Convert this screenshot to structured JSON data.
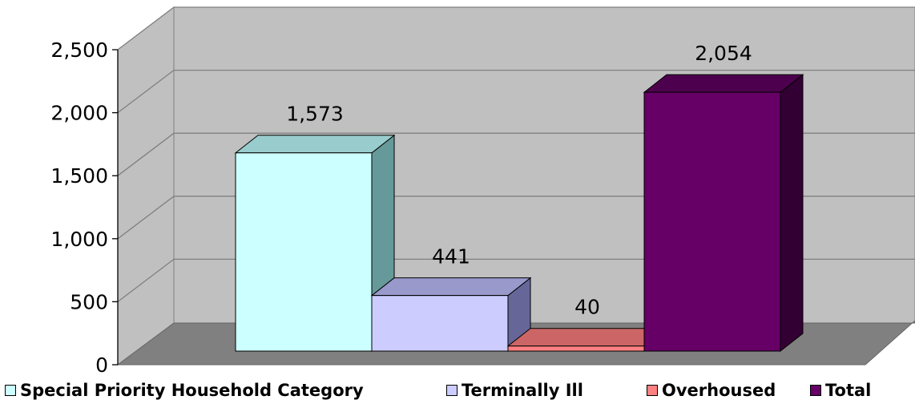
{
  "chart_data": {
    "type": "bar",
    "categories": [
      "Special Priority Household Category",
      "Terminally Ill",
      "Overhoused",
      "Total"
    ],
    "values": [
      1573,
      441,
      40,
      2054
    ],
    "value_labels": [
      "1,573",
      "441",
      "40",
      "2,054"
    ],
    "colors": {
      "front": [
        "#ccffff",
        "#ccccff",
        "#ff8080",
        "#660066"
      ],
      "top": [
        "#99cccc",
        "#9999cc",
        "#cc6666",
        "#4d004d"
      ],
      "side": [
        "#669999",
        "#666699",
        "#994c4c",
        "#330033"
      ]
    },
    "ylim": [
      0,
      2500
    ],
    "yticks": [
      0,
      500,
      1000,
      1500,
      2000,
      2500
    ],
    "ytick_labels": [
      "0",
      "500",
      "1,000",
      "1,500",
      "2,000",
      "2,500"
    ],
    "grid": true,
    "style": "3d-column",
    "legend_position": "bottom",
    "title": "",
    "xlabel": "",
    "ylabel": ""
  }
}
